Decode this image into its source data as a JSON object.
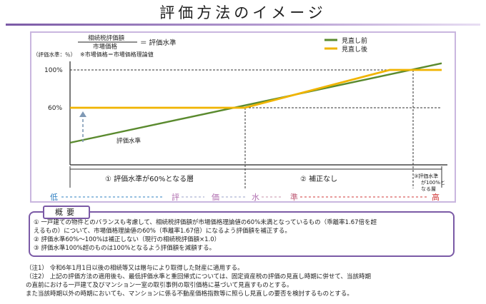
{
  "title": "評価方法のイメージ",
  "formula": {
    "numerator": "相続税評価額",
    "denominator": "市場価格",
    "result": "＝ 評価水準",
    "note": "※市場価格＝市場価格理論値"
  },
  "yaxis_unit": "（評価水準：％）",
  "legend": {
    "before": "見直し前",
    "after": "見直し後"
  },
  "line_label": "評価水準",
  "regions": {
    "r1": "① 評価水準が60%となる層",
    "r2": "② 補正なし",
    "r3_lines": [
      "③評価水準",
      "が100%と",
      "なる層"
    ]
  },
  "scale": {
    "low": "低",
    "chars": [
      "評",
      "価",
      "水",
      "準"
    ],
    "high": "高"
  },
  "overview": {
    "tag": "概要",
    "items": [
      "①  一戸建ての物件とのバランスも考慮して、相続税評価額が市場価格理論値の60%未満となっているもの（乖離率1.67倍を超",
      "     えるもの）について、市場価格理論値の60%（乖離率1.67倍）になるよう評価額を補正する。",
      "②  評価水準60%～100%は補正しない（現行の相続税評価額×1.0）",
      "③  評価水準100%超のものは100%となるよう評価額を減額する。"
    ]
  },
  "notes": [
    "（注1）    令和6年1月1日以後の相続等又は贈与により取得した財産に適用する。",
    "（注2）    上記の評価方法の適用後も、最低評価水準と重回帰式については、固定資産税の評価の見直し時期に併せて、当該時期",
    "            の直前における一戸建て及びマンション一室の取引事例の取引価格に基づいて見直すものとする。",
    "            また当該時期以外の時期においても、マンションに係る不動産価格指数等に照らし見直しの要否を検討するものとする。"
  ],
  "chart_data": {
    "type": "line",
    "y_ticks": [
      "100%",
      "60%"
    ],
    "series": [
      {
        "name": "見直し前",
        "color": "#5a8a2e",
        "points": [
          [
            0,
            23
          ],
          [
            1,
            107
          ]
        ]
      },
      {
        "name": "見直し後",
        "color": "#f0b400",
        "points": [
          [
            0,
            60
          ],
          [
            0.47,
            60
          ],
          [
            0.86,
            100
          ],
          [
            1,
            100
          ]
        ]
      }
    ],
    "thresholds": [
      60,
      100
    ],
    "ylim": [
      0,
      115
    ]
  },
  "colors": {
    "accent_purple": "#7b5aa6",
    "low_blue": "#2f7fc1",
    "high_red": "#d23a3a",
    "green": "#5a8a2e",
    "yellow": "#f0b400"
  }
}
